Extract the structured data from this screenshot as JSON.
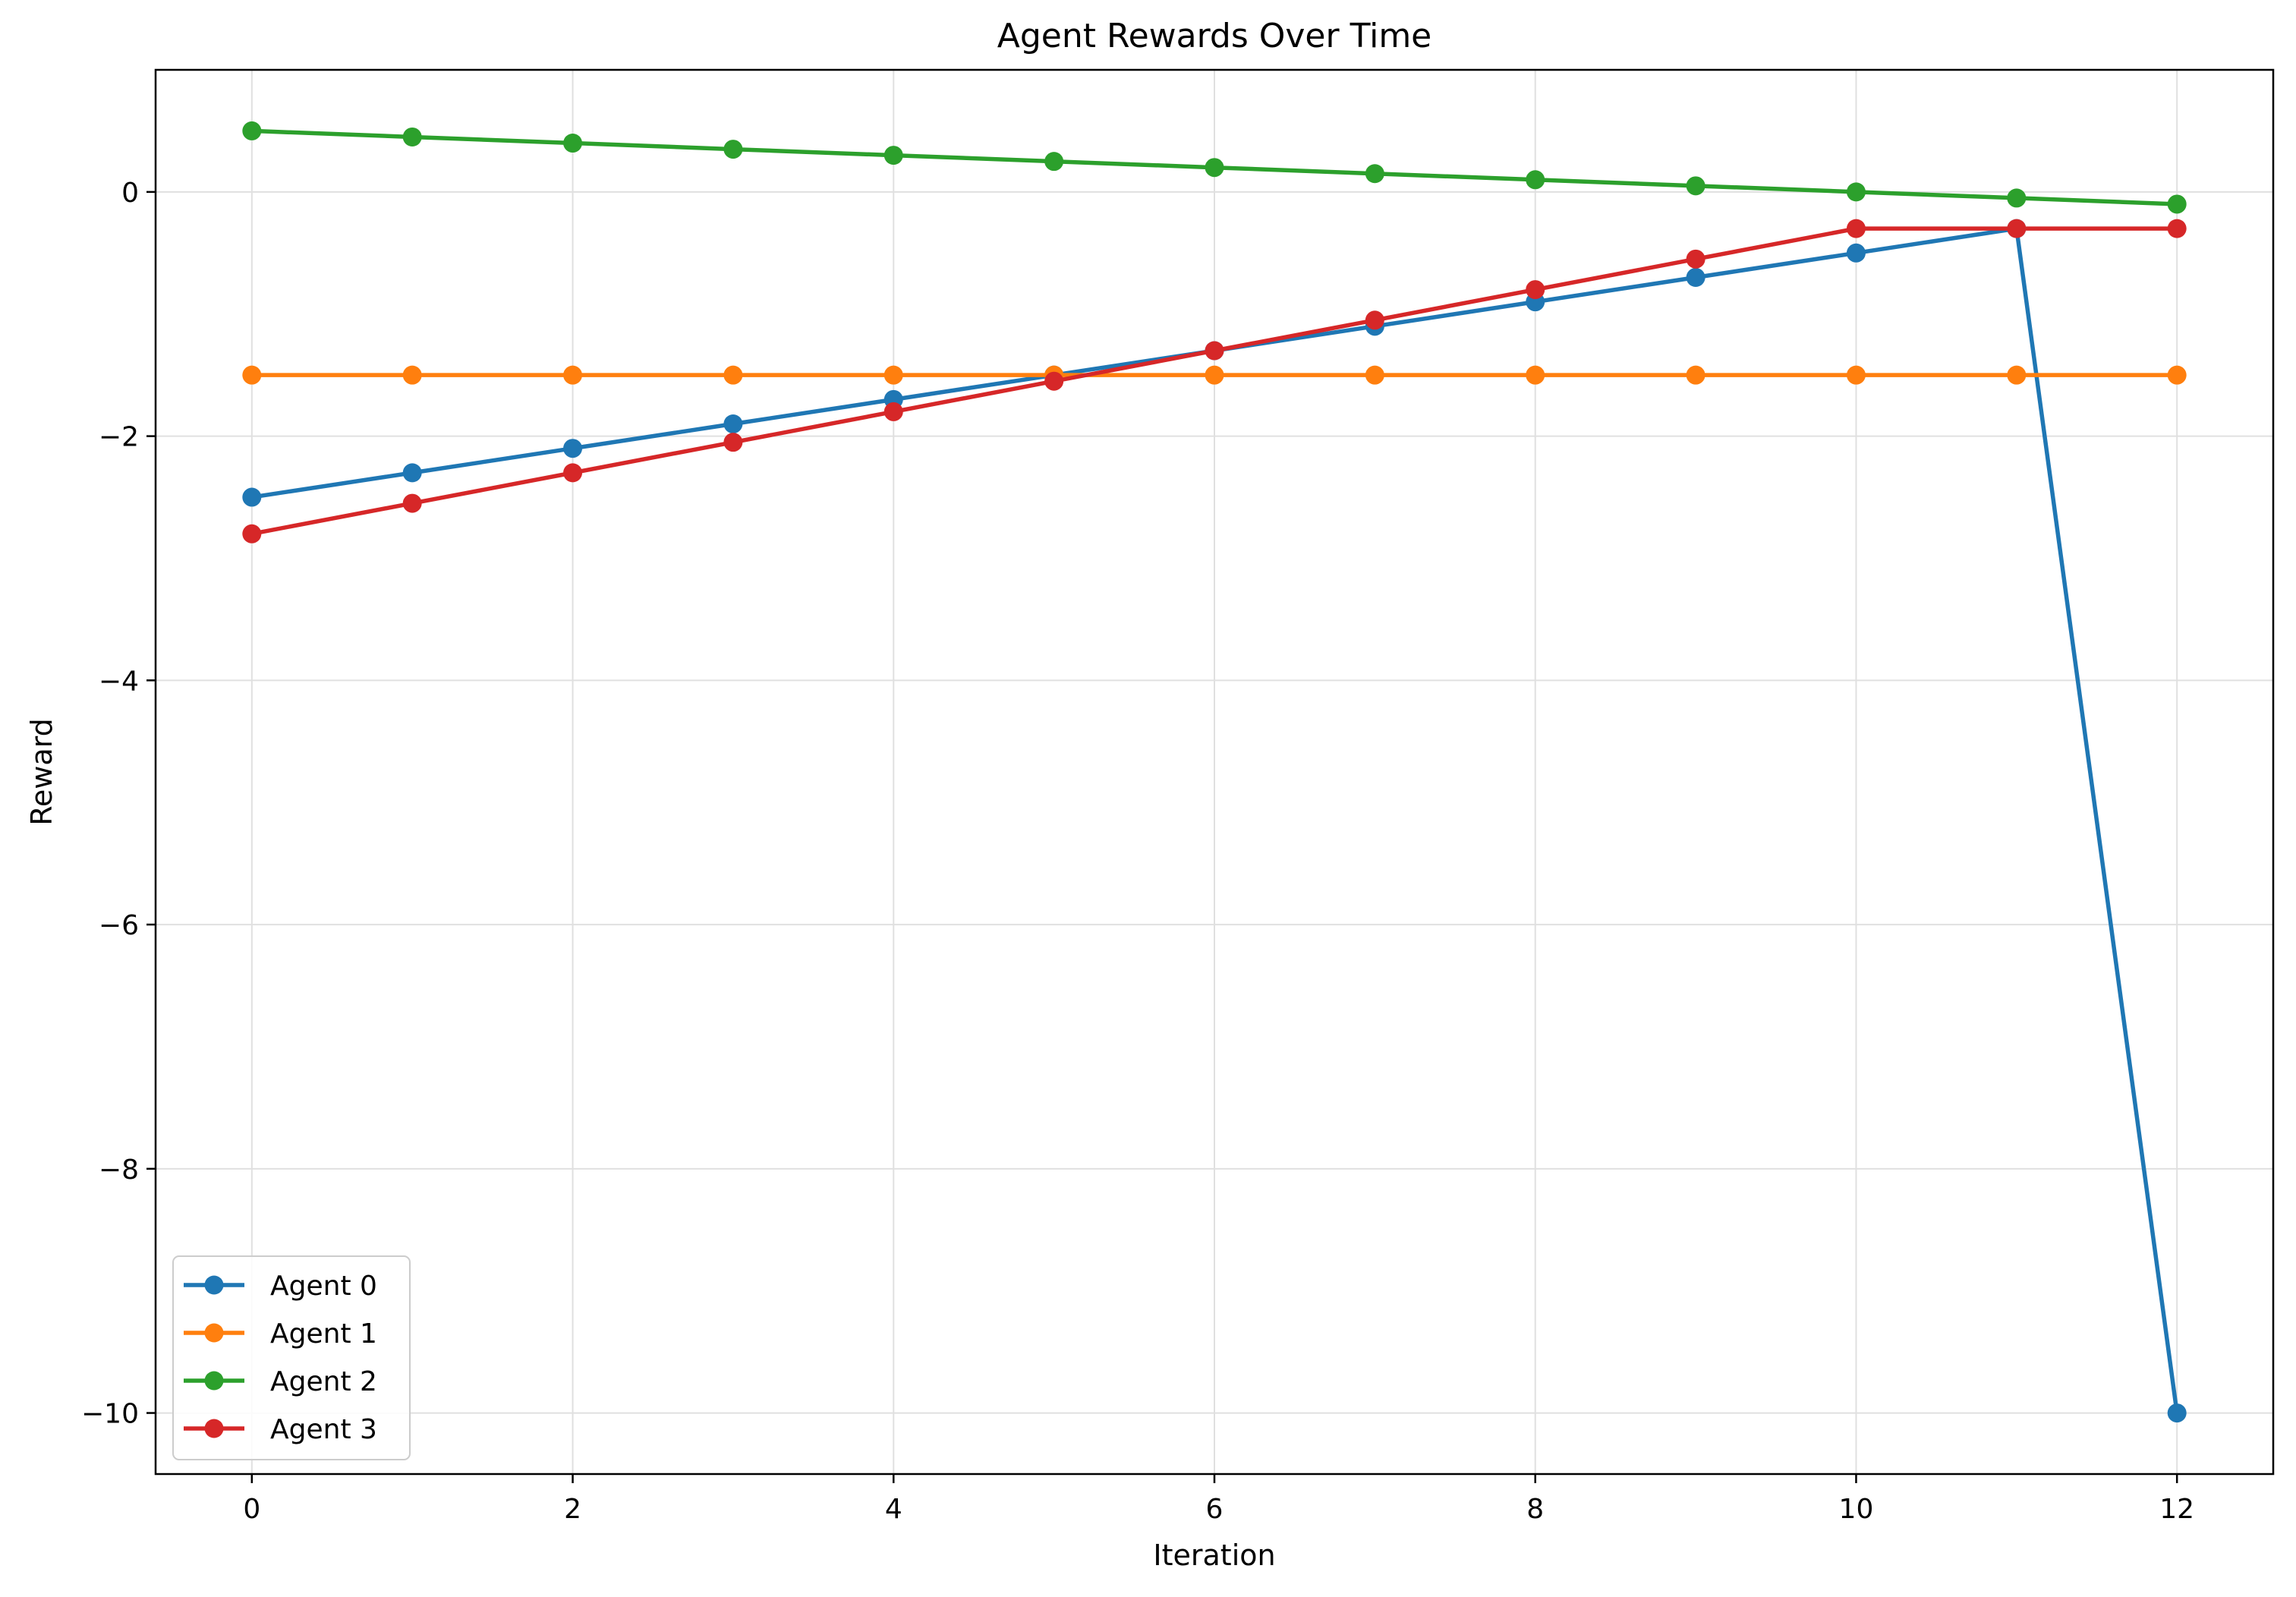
{
  "chart_data": {
    "type": "line",
    "title": "Agent Rewards Over Time",
    "xlabel": "Iteration",
    "ylabel": "Reward",
    "x": [
      0,
      1,
      2,
      3,
      4,
      5,
      6,
      7,
      8,
      9,
      10,
      11,
      12
    ],
    "xlim": [
      -0.6,
      12.6
    ],
    "ylim": [
      -10.5,
      1.0
    ],
    "xticks": [
      0,
      2,
      4,
      6,
      8,
      10,
      12
    ],
    "yticks": [
      0,
      -2,
      -4,
      -6,
      -8,
      -10
    ],
    "xtick_labels": [
      "0",
      "2",
      "4",
      "6",
      "8",
      "10",
      "12"
    ],
    "ytick_labels": [
      "0",
      "−2",
      "−4",
      "−6",
      "−8",
      "−10"
    ],
    "grid": true,
    "legend_position": "lower-left",
    "series": [
      {
        "name": "Agent 0",
        "color": "#1f77b4",
        "values": [
          -2.5,
          -2.3,
          -2.1,
          -1.9,
          -1.7,
          -1.5,
          -1.3,
          -1.1,
          -0.9,
          -0.7,
          -0.5,
          -0.3,
          -10.0
        ]
      },
      {
        "name": "Agent 1",
        "color": "#ff7f0e",
        "values": [
          -1.5,
          -1.5,
          -1.5,
          -1.5,
          -1.5,
          -1.5,
          -1.5,
          -1.5,
          -1.5,
          -1.5,
          -1.5,
          -1.5,
          -1.5
        ]
      },
      {
        "name": "Agent 2",
        "color": "#2ca02c",
        "values": [
          0.5,
          0.45,
          0.4,
          0.35,
          0.3,
          0.25,
          0.2,
          0.15,
          0.1,
          0.05,
          0.0,
          -0.05,
          -0.1
        ]
      },
      {
        "name": "Agent 3",
        "color": "#d62728",
        "values": [
          -2.8,
          -2.55,
          -2.3,
          -2.05,
          -1.8,
          -1.55,
          -1.3,
          -1.05,
          -0.8,
          -0.55,
          -0.3,
          -0.3,
          -0.3
        ]
      }
    ]
  }
}
